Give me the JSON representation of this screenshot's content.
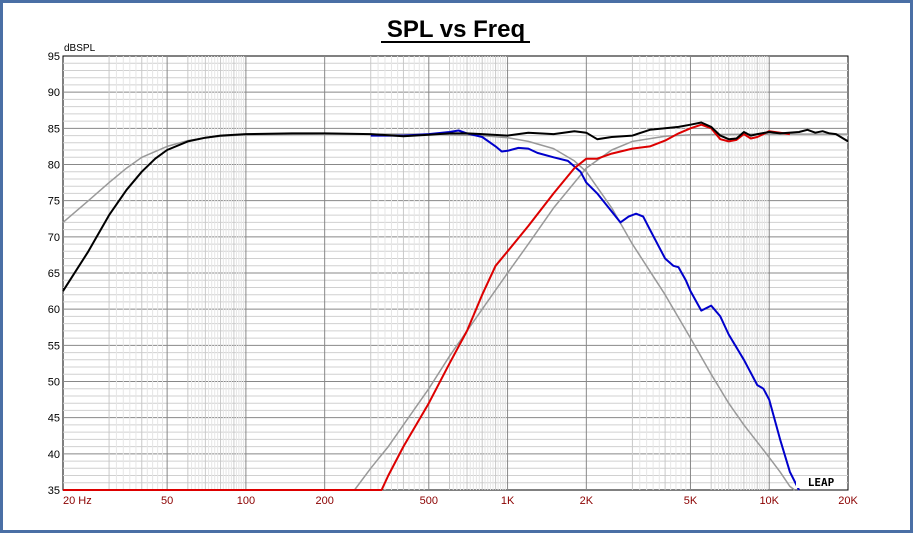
{
  "chart_data": {
    "type": "line",
    "title": "SPL vs Freq",
    "ylabel": "dBSPL",
    "xlabel": "",
    "x_scale": "log",
    "xlim": [
      20,
      20000
    ],
    "ylim": [
      35,
      95
    ],
    "grid": true,
    "y_ticks": [
      35,
      40,
      45,
      50,
      55,
      60,
      65,
      70,
      75,
      80,
      85,
      90,
      95
    ],
    "x_ticks": [
      {
        "value": 20,
        "label": "20  Hz"
      },
      {
        "value": 50,
        "label": "50"
      },
      {
        "value": 100,
        "label": "100"
      },
      {
        "value": 200,
        "label": "200"
      },
      {
        "value": 500,
        "label": "500"
      },
      {
        "value": 1000,
        "label": "1K"
      },
      {
        "value": 2000,
        "label": "2K"
      },
      {
        "value": 5000,
        "label": "5K"
      },
      {
        "value": 10000,
        "label": "10K"
      },
      {
        "value": 20000,
        "label": "20K"
      }
    ],
    "series": [
      {
        "color": "#999999",
        "points": [
          [
            20,
            72
          ],
          [
            25,
            75
          ],
          [
            30,
            77.5
          ],
          [
            35,
            79.5
          ],
          [
            40,
            81
          ],
          [
            50,
            82.5
          ],
          [
            60,
            83.3
          ],
          [
            70,
            83.7
          ],
          [
            80,
            83.9
          ],
          [
            100,
            84.1
          ],
          [
            200,
            84.2
          ],
          [
            500,
            84.2
          ],
          [
            800,
            84
          ],
          [
            1000,
            83.7
          ],
          [
            1200,
            83.2
          ],
          [
            1500,
            82.2
          ],
          [
            1800,
            80.5
          ],
          [
            2000,
            79
          ],
          [
            2500,
            74
          ],
          [
            3000,
            69
          ],
          [
            4000,
            62
          ],
          [
            5000,
            56
          ],
          [
            6000,
            51
          ],
          [
            7000,
            47
          ],
          [
            8000,
            44
          ],
          [
            10000,
            39.5
          ],
          [
            11000,
            37.5
          ],
          [
            12000,
            35.5
          ],
          [
            12500,
            35
          ]
        ]
      },
      {
        "color": "#999999",
        "points": [
          [
            260,
            35
          ],
          [
            300,
            38
          ],
          [
            350,
            41
          ],
          [
            400,
            44
          ],
          [
            500,
            49
          ],
          [
            600,
            53.5
          ],
          [
            700,
            57
          ],
          [
            800,
            60
          ],
          [
            1000,
            65
          ],
          [
            1200,
            69
          ],
          [
            1500,
            74
          ],
          [
            1800,
            77.5
          ],
          [
            2000,
            79.5
          ],
          [
            2500,
            82
          ],
          [
            3000,
            83.2
          ],
          [
            4000,
            83.9
          ],
          [
            5000,
            84.1
          ],
          [
            10000,
            84.2
          ],
          [
            20000,
            84.2
          ]
        ]
      },
      {
        "color": "#0000cc",
        "points": [
          [
            300,
            84
          ],
          [
            400,
            84
          ],
          [
            500,
            84.2
          ],
          [
            600,
            84.5
          ],
          [
            650,
            84.7
          ],
          [
            700,
            84.3
          ],
          [
            800,
            83.8
          ],
          [
            900,
            82.5
          ],
          [
            950,
            81.8
          ],
          [
            1000,
            81.9
          ],
          [
            1100,
            82.3
          ],
          [
            1200,
            82.2
          ],
          [
            1300,
            81.6
          ],
          [
            1500,
            81
          ],
          [
            1700,
            80.5
          ],
          [
            1900,
            79
          ],
          [
            2000,
            77.5
          ],
          [
            2200,
            76
          ],
          [
            2500,
            73.5
          ],
          [
            2700,
            72
          ],
          [
            2900,
            72.8
          ],
          [
            3100,
            73.2
          ],
          [
            3300,
            72.8
          ],
          [
            3500,
            71
          ],
          [
            4000,
            67
          ],
          [
            4300,
            66
          ],
          [
            4500,
            65.8
          ],
          [
            4800,
            64
          ],
          [
            5000,
            62.5
          ],
          [
            5500,
            59.8
          ],
          [
            6000,
            60.5
          ],
          [
            6500,
            59
          ],
          [
            7000,
            56.5
          ],
          [
            8000,
            53
          ],
          [
            9000,
            49.5
          ],
          [
            9500,
            49
          ],
          [
            10000,
            47.5
          ],
          [
            11000,
            42
          ],
          [
            12000,
            37.5
          ],
          [
            13000,
            35
          ]
        ]
      },
      {
        "color": "#dd0000",
        "points": [
          [
            20,
            35
          ],
          [
            330,
            35
          ],
          [
            350,
            37
          ],
          [
            400,
            41
          ],
          [
            500,
            47
          ],
          [
            600,
            52.5
          ],
          [
            700,
            57
          ],
          [
            800,
            62
          ],
          [
            900,
            66
          ],
          [
            1000,
            68
          ],
          [
            1200,
            71.5
          ],
          [
            1500,
            76
          ],
          [
            1800,
            79.5
          ],
          [
            2000,
            80.8
          ],
          [
            2200,
            80.8
          ],
          [
            2500,
            81.5
          ],
          [
            3000,
            82.2
          ],
          [
            3500,
            82.5
          ],
          [
            4000,
            83.3
          ],
          [
            4500,
            84.3
          ],
          [
            5000,
            85
          ],
          [
            5500,
            85.5
          ],
          [
            6000,
            85
          ],
          [
            6500,
            83.5
          ],
          [
            7000,
            83.2
          ],
          [
            7500,
            83.4
          ],
          [
            8000,
            84.2
          ],
          [
            8500,
            83.6
          ],
          [
            9000,
            83.8
          ],
          [
            10000,
            84.6
          ],
          [
            11000,
            84.4
          ],
          [
            12000,
            84.2
          ]
        ]
      },
      {
        "color": "#000000",
        "points": [
          [
            20,
            62.5
          ],
          [
            25,
            68
          ],
          [
            30,
            73
          ],
          [
            35,
            76.5
          ],
          [
            40,
            79
          ],
          [
            45,
            80.8
          ],
          [
            50,
            82
          ],
          [
            60,
            83.2
          ],
          [
            70,
            83.7
          ],
          [
            80,
            84
          ],
          [
            100,
            84.2
          ],
          [
            150,
            84.3
          ],
          [
            200,
            84.3
          ],
          [
            300,
            84.2
          ],
          [
            400,
            83.9
          ],
          [
            500,
            84.1
          ],
          [
            600,
            84.3
          ],
          [
            700,
            84.3
          ],
          [
            800,
            84.2
          ],
          [
            1000,
            84
          ],
          [
            1200,
            84.4
          ],
          [
            1500,
            84.2
          ],
          [
            1800,
            84.6
          ],
          [
            2000,
            84.4
          ],
          [
            2200,
            83.5
          ],
          [
            2500,
            83.8
          ],
          [
            3000,
            84
          ],
          [
            3500,
            84.8
          ],
          [
            4000,
            85
          ],
          [
            4500,
            85.2
          ],
          [
            5000,
            85.5
          ],
          [
            5500,
            85.8
          ],
          [
            6000,
            85.2
          ],
          [
            6500,
            84
          ],
          [
            7000,
            83.5
          ],
          [
            7500,
            83.6
          ],
          [
            8000,
            84.5
          ],
          [
            8500,
            84
          ],
          [
            9000,
            84.2
          ],
          [
            10000,
            84.5
          ],
          [
            11000,
            84.3
          ],
          [
            13000,
            84.5
          ],
          [
            14000,
            84.8
          ],
          [
            15000,
            84.4
          ],
          [
            16000,
            84.6
          ],
          [
            17000,
            84.3
          ],
          [
            18000,
            84.2
          ],
          [
            20000,
            83.2
          ]
        ]
      }
    ]
  },
  "watermark": "LEAP"
}
